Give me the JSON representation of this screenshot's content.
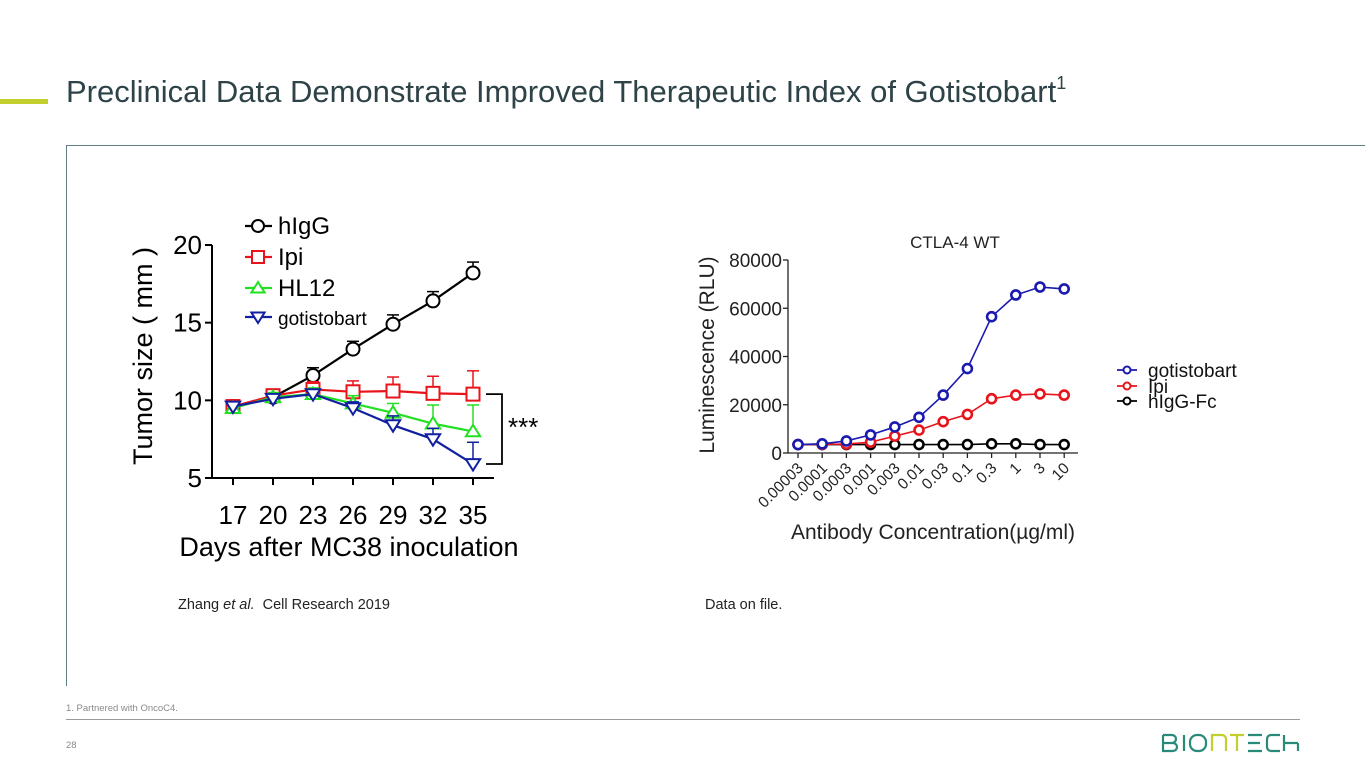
{
  "slide": {
    "title": "Preclinical Data Demonstrate Improved Therapeutic Index of Gotistobart",
    "title_superscript": "1",
    "accent_color": "#c3cf2e",
    "title_color": "#2e4347",
    "left_citation_author": "Zhang ",
    "left_citation_etal": "et al.",
    "left_citation_rest": "  Cell Research 2019",
    "right_citation": "Data on file.",
    "footnote": "1. Partnered with OncoC4.",
    "page_number": "28",
    "logo": {
      "parts": [
        "BIO",
        "NT",
        "ECH"
      ],
      "text": "BIONTECH",
      "primary_color": "#2a8a7a",
      "highlight_color": "#c3cf2e"
    }
  },
  "chart_data": [
    {
      "type": "line",
      "title": "",
      "xlabel": "Days after MC38 inoculation",
      "ylabel": "Tumor size ( mm )",
      "x": [
        17,
        20,
        23,
        26,
        29,
        32,
        35
      ],
      "x_tick_labels": [
        "17",
        "20",
        "23",
        "26",
        "29",
        "32",
        "35"
      ],
      "ylim": [
        5,
        20
      ],
      "y_ticks": [
        5,
        10,
        15,
        20
      ],
      "y_tick_labels": [
        "5",
        "10",
        "15",
        "20"
      ],
      "grid": false,
      "legend_position": "top-left",
      "annotation": "***",
      "series": [
        {
          "name": "hIgG",
          "color": "#000000",
          "marker": "circle",
          "values": [
            9.6,
            10.2,
            11.6,
            13.3,
            14.9,
            16.4,
            18.2
          ],
          "error": [
            0.2,
            0.3,
            0.5,
            0.5,
            0.6,
            0.6,
            0.7
          ]
        },
        {
          "name": "Ipi",
          "color": "#e8141c",
          "marker": "square",
          "values": [
            9.6,
            10.3,
            10.7,
            10.55,
            10.6,
            10.45,
            10.4
          ],
          "error": [
            0.2,
            0.3,
            0.5,
            0.7,
            0.9,
            1.1,
            1.5
          ]
        },
        {
          "name": "HL12",
          "color": "#22e022",
          "marker": "triangle-up",
          "values": [
            9.5,
            10.2,
            10.4,
            9.8,
            9.2,
            8.5,
            8.0
          ],
          "error": [
            0.2,
            0.3,
            0.4,
            0.5,
            0.6,
            1.2,
            1.7
          ]
        },
        {
          "name": "gotistobart",
          "color": "#1020a0",
          "marker": "triangle-down",
          "values": [
            9.6,
            10.1,
            10.4,
            9.5,
            8.4,
            7.5,
            5.9
          ],
          "error": [
            0.2,
            0.3,
            0.3,
            0.4,
            0.6,
            0.7,
            1.4
          ]
        }
      ]
    },
    {
      "type": "line",
      "title": "CTLA-4 WT",
      "xlabel": "Antibody Concentration(µg/ml)",
      "ylabel": "Luminescence (RLU)",
      "x_tick_labels": [
        "0.00003",
        "0.0001",
        "0.0003",
        "0.001",
        "0.003",
        "0.01",
        "0.03",
        "0.1",
        "0.3",
        "1",
        "3",
        "10"
      ],
      "ylim": [
        0,
        80000
      ],
      "y_ticks": [
        0,
        20000,
        40000,
        60000,
        80000
      ],
      "y_tick_labels": [
        "0",
        "20000",
        "40000",
        "60000",
        "80000"
      ],
      "grid": false,
      "legend_position": "right",
      "series": [
        {
          "name": "gotistobart",
          "color": "#1a1ab0",
          "marker": "circle",
          "values": [
            3500,
            3800,
            5000,
            7500,
            10800,
            14800,
            24000,
            35000,
            56500,
            65500,
            68800,
            68000
          ]
        },
        {
          "name": "Ipi",
          "color": "#e8141c",
          "marker": "circle",
          "values": [
            3500,
            3600,
            3700,
            4500,
            7000,
            9500,
            13000,
            16000,
            22500,
            24000,
            24500,
            24000
          ]
        },
        {
          "name": "hIgG-Fc",
          "color": "#000000",
          "marker": "circle",
          "values": [
            3500,
            3500,
            3500,
            3500,
            3500,
            3500,
            3500,
            3500,
            3800,
            3800,
            3500,
            3500
          ]
        }
      ]
    }
  ]
}
